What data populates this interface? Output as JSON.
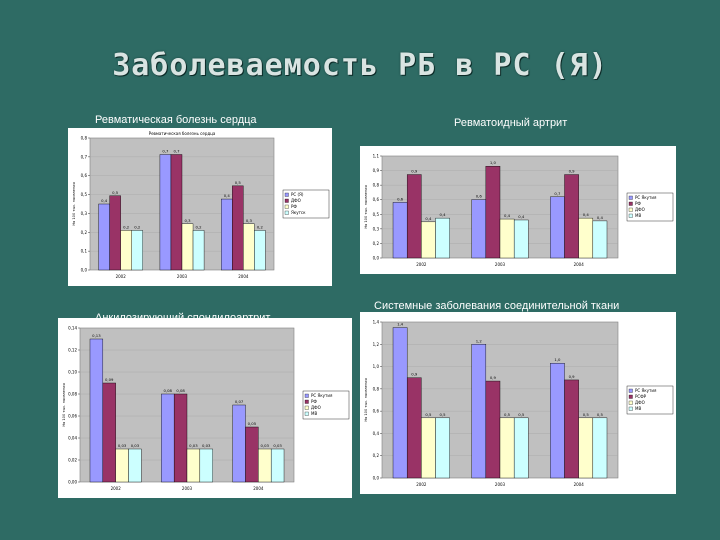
{
  "slide": {
    "title": "Заболеваемость РБ в РС (Я)"
  },
  "charts": [
    {
      "label": "Ревматическая болезнь сердца",
      "inner_title": "Ревматическая болезнь сердца",
      "ylabel": "На 100 тыс. населения",
      "chart_data": {
        "type": "bar",
        "categories": [
          "2002",
          "2003",
          "2004"
        ],
        "ylim": [
          0,
          0.8
        ],
        "series": [
          {
            "name": "РС (Я)",
            "color": "#9999ff",
            "values": [
              0.4,
              0.7,
              0.43
            ]
          },
          {
            "name": "ДФО",
            "color": "#993366",
            "values": [
              0.45,
              0.7,
              0.51
            ]
          },
          {
            "name": "РФ",
            "color": "#ffffcc",
            "values": [
              0.24,
              0.28,
              0.28
            ]
          },
          {
            "name": "Якутск",
            "color": "#ccffff",
            "values": [
              0.24,
              0.24,
              0.24
            ]
          }
        ]
      }
    },
    {
      "label": "Ревматоидный артрит",
      "inner_title": "",
      "ylabel": "На 100 тыс. населения",
      "chart_data": {
        "type": "bar",
        "categories": [
          "2002",
          "2003",
          "2004"
        ],
        "ylim": [
          0,
          1.1
        ],
        "series": [
          {
            "name": "РС Якутия",
            "color": "#9999ff",
            "values": [
              0.6,
              0.63,
              0.66
            ]
          },
          {
            "name": "РФ",
            "color": "#993366",
            "values": [
              0.9,
              0.99,
              0.9
            ]
          },
          {
            "name": "ДФО",
            "color": "#ffffcc",
            "values": [
              0.39,
              0.42,
              0.43
            ]
          },
          {
            "name": "МВ",
            "color": "#ccffff",
            "values": [
              0.43,
              0.41,
              0.4
            ]
          }
        ]
      }
    },
    {
      "label": "Анкилозирующий спондилоартрит",
      "inner_title": "",
      "ylabel": "На 100 тыс. населения",
      "chart_data": {
        "type": "bar",
        "categories": [
          "2002",
          "2003",
          "2004"
        ],
        "ylim": [
          0,
          0.14
        ],
        "series": [
          {
            "name": "РС Якутия",
            "color": "#9999ff",
            "values": [
              0.13,
              0.08,
              0.07
            ]
          },
          {
            "name": "РФ",
            "color": "#993366",
            "values": [
              0.09,
              0.08,
              0.05
            ]
          },
          {
            "name": "ДФО",
            "color": "#ffffcc",
            "values": [
              0.03,
              0.03,
              0.03
            ]
          },
          {
            "name": "МВ",
            "color": "#ccffff",
            "values": [
              0.03,
              0.03,
              0.03
            ]
          }
        ]
      }
    },
    {
      "label": "Системные заболевания соединительной ткани",
      "inner_title": "",
      "ylabel": "На 100 тыс. населения",
      "chart_data": {
        "type": "bar",
        "categories": [
          "2002",
          "2003",
          "2004"
        ],
        "ylim": [
          0,
          1.4
        ],
        "series": [
          {
            "name": "РС Якутия",
            "color": "#9999ff",
            "values": [
              1.35,
              1.2,
              1.03
            ]
          },
          {
            "name": "РСФР",
            "color": "#993366",
            "values": [
              0.9,
              0.87,
              0.88
            ]
          },
          {
            "name": "ДФО",
            "color": "#ffffcc",
            "values": [
              0.54,
              0.54,
              0.54
            ]
          },
          {
            "name": "МВ",
            "color": "#ccffff",
            "values": [
              0.54,
              0.54,
              0.54
            ]
          }
        ]
      }
    }
  ]
}
